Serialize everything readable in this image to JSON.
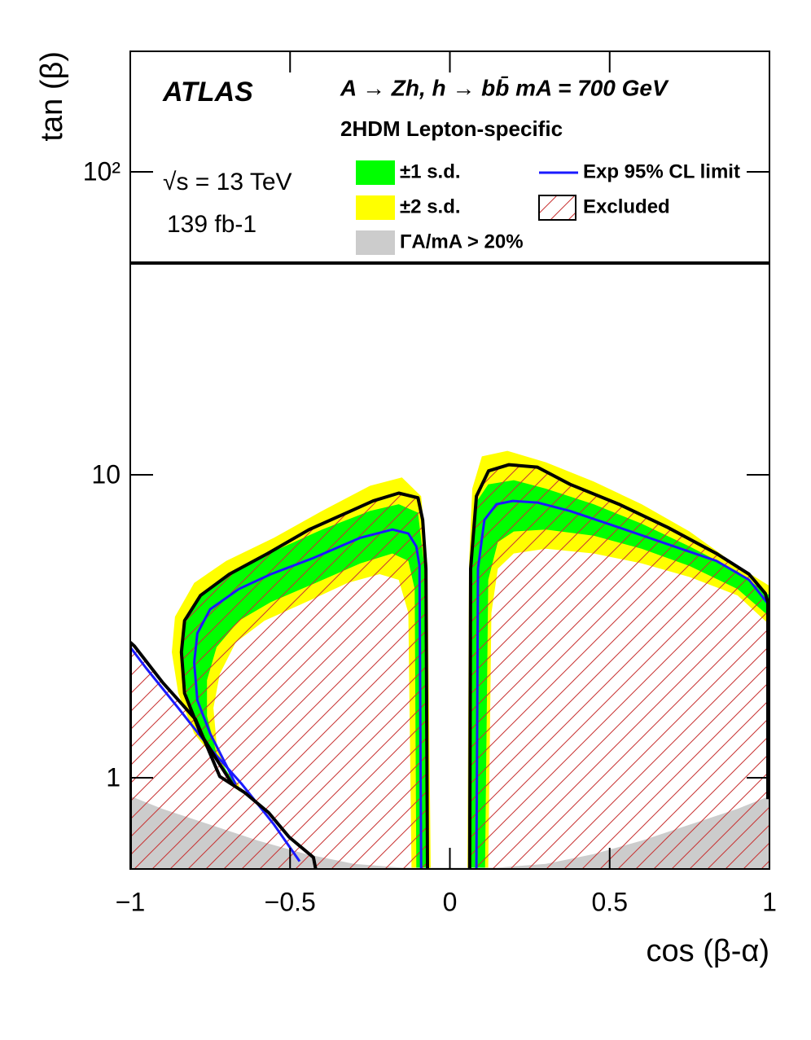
{
  "chart_data": {
    "type": "contour",
    "xlabel": "cos (β-α)",
    "ylabel": "tan (β)",
    "xlim": [
      -1,
      1
    ],
    "ylim": [
      0.5,
      250
    ],
    "log_y": true,
    "xticks": [
      {
        "value": -1,
        "label": "−1"
      },
      {
        "value": -0.5,
        "label": "−0.5"
      },
      0,
      0.5,
      1
    ],
    "yticks": [
      1,
      10,
      {
        "value": 100,
        "label": "10²"
      }
    ],
    "hline": 50,
    "annotations": [
      "ATLAS",
      "A → Zh, h → bb̄ mA = 700 GeV",
      "2HDM Lepton-specific",
      "√s = 13 TeV",
      "139 fb-1"
    ],
    "series": [
      {
        "name": "±1 s.d.",
        "kind": "band",
        "color": "#00ff00",
        "parts": [
          {
            "x": [
              -0.075,
              -0.08,
              -0.1,
              -0.16,
              -0.25,
              -0.4,
              -0.55,
              -0.68,
              -0.78,
              -0.83,
              -0.84,
              -0.82,
              -0.77,
              -0.71,
              -0.67,
              -0.68,
              -0.73,
              -0.76,
              -0.76,
              -0.73,
              -0.66,
              -0.56,
              -0.42,
              -0.28,
              -0.18,
              -0.13,
              -0.11,
              -0.105
            ],
            "y": [
              0.5,
              5,
              7.5,
              8.0,
              7.6,
              6.6,
              5.6,
              4.8,
              4.0,
              3.2,
              2.5,
              1.8,
              1.35,
              1.1,
              0.95,
              0.95,
              1.2,
              1.6,
              2.1,
              2.7,
              3.3,
              3.8,
              4.4,
              5.1,
              5.5,
              5.2,
              4.2,
              0.5
            ]
          },
          {
            "x": [
              0.065,
              0.07,
              0.085,
              0.12,
              0.2,
              0.3,
              0.45,
              0.6,
              0.75,
              0.9,
              1.0,
              1.0,
              0.9,
              0.75,
              0.6,
              0.45,
              0.3,
              0.2,
              0.15,
              0.12,
              0.11
            ],
            "y": [
              0.5,
              5,
              8.2,
              9.3,
              9.6,
              9.0,
              8.0,
              6.9,
              5.8,
              4.8,
              4.0,
              3.4,
              4.2,
              5.0,
              5.7,
              6.3,
              6.6,
              6.5,
              6.0,
              4.5,
              0.5
            ]
          }
        ]
      },
      {
        "name": "±2 s.d.",
        "kind": "band",
        "color": "#ffff00",
        "parts": [
          {
            "x": [
              -0.06,
              -0.07,
              -0.09,
              -0.15,
              -0.25,
              -0.4,
              -0.55,
              -0.7,
              -0.8,
              -0.86,
              -0.87,
              -0.85,
              -0.8,
              -0.72,
              -0.66,
              -0.66,
              -0.7,
              -0.73,
              -0.74,
              -0.72,
              -0.67,
              -0.58,
              -0.45,
              -0.32,
              -0.22,
              -0.16,
              -0.13,
              -0.12
            ],
            "y": [
              0.5,
              5,
              8.5,
              9.8,
              9.2,
              7.6,
              6.2,
              5.2,
              4.4,
              3.4,
              2.6,
              1.9,
              1.4,
              1.1,
              0.95,
              0.9,
              1.05,
              1.3,
              1.7,
              2.2,
              2.8,
              3.3,
              3.8,
              4.4,
              4.7,
              4.5,
              3.5,
              0.5
            ]
          },
          {
            "x": [
              0.055,
              0.06,
              0.07,
              0.1,
              0.18,
              0.3,
              0.45,
              0.6,
              0.75,
              0.9,
              1.0,
              1.0,
              0.9,
              0.75,
              0.6,
              0.45,
              0.3,
              0.2,
              0.15,
              0.13,
              0.12
            ],
            "y": [
              0.5,
              5,
              9,
              11.5,
              12,
              11,
              9.5,
              8,
              6.5,
              5,
              4.3,
              3.2,
              4.0,
              4.6,
              5.1,
              5.5,
              5.7,
              5.5,
              4.9,
              3.5,
              0.5
            ]
          }
        ]
      },
      {
        "name": "ΓA/mA > 20%",
        "kind": "band",
        "color": "#cccccc",
        "parts": [
          {
            "x": [
              -1,
              -0.9,
              -0.75,
              -0.6,
              -0.45,
              -0.3,
              -0.15,
              0.15,
              0.3,
              0.45,
              0.6,
              0.75,
              0.9,
              1,
              1,
              -1
            ],
            "y": [
              0.87,
              0.79,
              0.7,
              0.62,
              0.56,
              0.52,
              0.505,
              0.505,
              0.52,
              0.56,
              0.62,
              0.7,
              0.79,
              0.87,
              0.5,
              0.5
            ]
          }
        ]
      },
      {
        "name": "Exp 95% CL limit",
        "kind": "line",
        "color": "#1a1aff",
        "parts": [
          {
            "x": [
              -0.09,
              -0.095,
              -0.105,
              -0.13,
              -0.18,
              -0.28,
              -0.43,
              -0.56,
              -0.66,
              -0.75,
              -0.79,
              -0.8,
              -0.79,
              -0.75,
              -0.7,
              -0.67
            ],
            "y": [
              0.5,
              5.0,
              5.8,
              6.4,
              6.6,
              6.2,
              5.3,
              4.7,
              4.2,
              3.6,
              3.0,
              2.4,
              1.8,
              1.4,
              1.1,
              0.95
            ]
          },
          {
            "x": [
              -1,
              -0.95,
              -0.85,
              -0.75,
              -0.65,
              -0.55,
              -0.47
            ],
            "y": [
              2.7,
              2.3,
              1.7,
              1.25,
              0.95,
              0.7,
              0.53
            ]
          },
          {
            "x": [
              0.083,
              0.088,
              0.108,
              0.146,
              0.197,
              0.274,
              0.376,
              0.529,
              0.682,
              0.834,
              0.936,
              1.0
            ],
            "y": [
              0.5,
              4.9,
              7.1,
              8.0,
              8.2,
              8.1,
              7.6,
              6.7,
              5.9,
              5.2,
              4.5,
              3.7
            ]
          }
        ]
      },
      {
        "name": "Excluded",
        "kind": "hatch",
        "color": "#c83232",
        "parts": [
          {
            "x": [
              -1,
              -1,
              -0.898,
              -0.796,
              -0.72,
              -0.73,
              -0.78,
              -0.83,
              -0.84,
              -0.83,
              -0.78,
              -0.69,
              -0.57,
              -0.44,
              -0.31,
              -0.24,
              -0.16,
              -0.1,
              -0.085,
              -0.075,
              -0.07
            ],
            "y": [
              0.5,
              2.8,
              2.06,
              1.56,
              1.01,
              1.15,
              1.4,
              1.9,
              2.6,
              3.3,
              4.0,
              4.7,
              5.5,
              6.6,
              7.6,
              8.2,
              8.7,
              8.4,
              7.1,
              4.9,
              0.5
            ]
          },
          {
            "x": [
              0.062,
              0.065,
              0.083,
              0.121,
              0.185,
              0.274,
              0.376,
              0.529,
              0.682,
              0.834,
              0.936,
              0.987,
              1.0,
              1.0
            ],
            "y": [
              0.5,
              4.9,
              8.5,
              10.3,
              10.8,
              10.6,
              9.3,
              8.0,
              6.7,
              5.5,
              4.7,
              4.06,
              3.8,
              0.5
            ]
          }
        ]
      },
      {
        "kind": "line",
        "color": "#000000",
        "parts": [
          {
            "x": [
              -0.07,
              -0.075,
              -0.085,
              -0.1,
              -0.16,
              -0.24,
              -0.31,
              -0.44,
              -0.57,
              -0.69,
              -0.78,
              -0.83,
              -0.84,
              -0.83,
              -0.78,
              -0.73,
              -0.68
            ],
            "y": [
              0.5,
              4.9,
              7.1,
              8.4,
              8.7,
              8.2,
              7.6,
              6.6,
              5.5,
              4.7,
              4.0,
              3.3,
              2.6,
              1.9,
              1.4,
              1.15,
              0.95
            ]
          },
          {
            "x": [
              -1,
              -1,
              -0.987,
              -0.898,
              -0.796,
              -0.72,
              -0.643,
              -0.567,
              -0.503,
              -0.427,
              -0.42
            ],
            "y": [
              0.5,
              2.8,
              2.72,
              2.06,
              1.56,
              1.01,
              0.895,
              0.767,
              0.637,
              0.546,
              0.5
            ]
          },
          {
            "x": [
              0.062,
              0.065,
              0.083,
              0.121,
              0.185,
              0.274,
              0.376,
              0.529,
              0.682,
              0.834,
              0.936,
              0.987,
              0.995,
              0.995
            ],
            "y": [
              0.5,
              4.9,
              8.5,
              10.3,
              10.8,
              10.6,
              9.3,
              8.0,
              6.7,
              5.5,
              4.7,
              4.06,
              3.8,
              0.85
            ]
          }
        ]
      }
    ]
  }
}
